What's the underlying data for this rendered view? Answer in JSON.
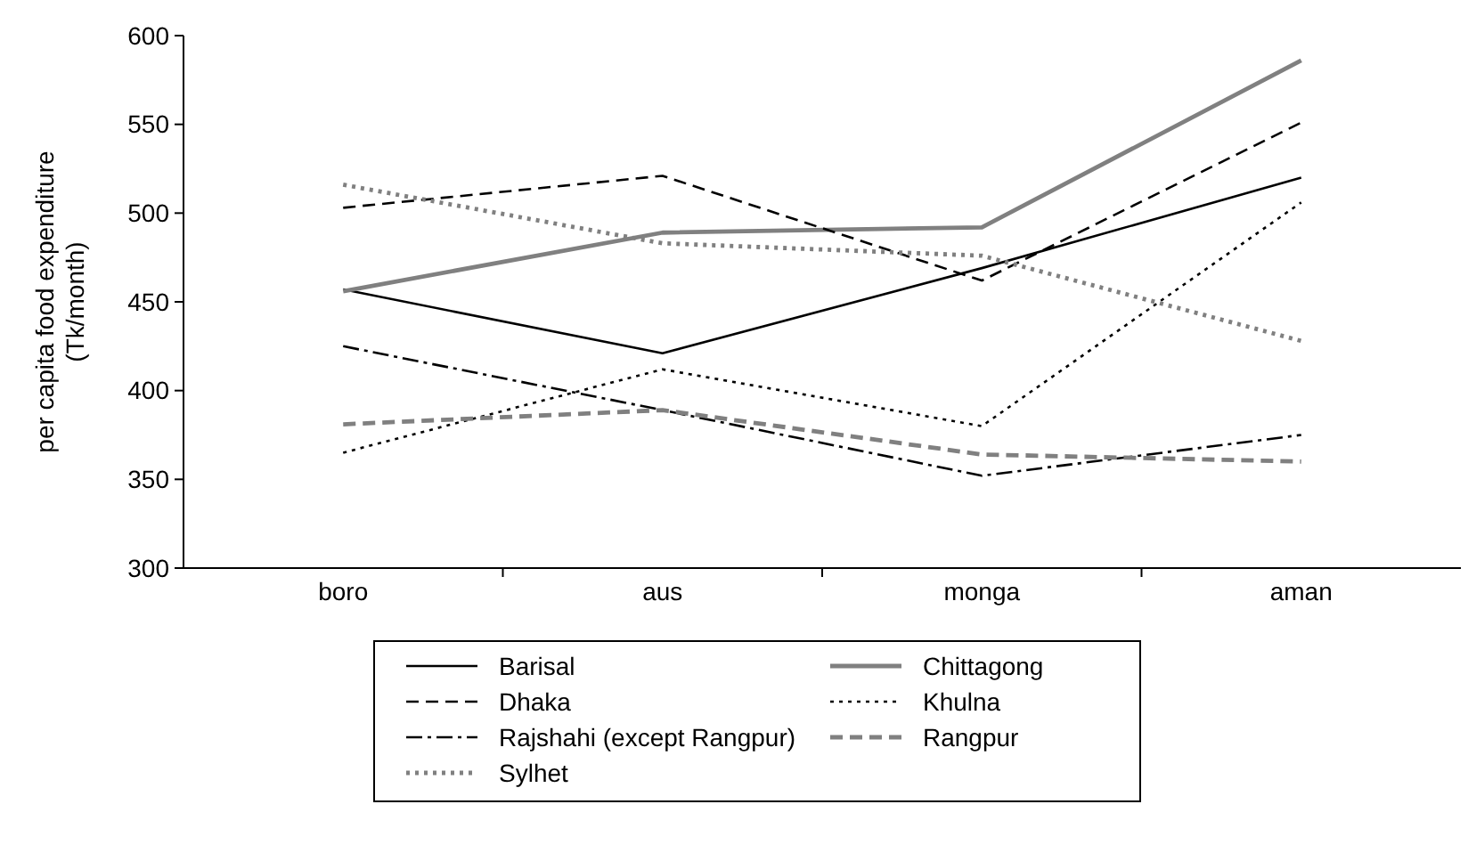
{
  "chart_data": {
    "type": "line",
    "ylabel": "per capita food expenditure\n(Tk/month)",
    "categories": [
      "boro",
      "aus",
      "monga",
      "aman"
    ],
    "ylim": [
      300,
      600
    ],
    "yticks": [
      300,
      350,
      400,
      450,
      500,
      550,
      600
    ],
    "grid": false,
    "legend": "bottom",
    "marker": "none",
    "series": [
      {
        "name": "Barisal",
        "color": "#000000",
        "line_style": "solid",
        "values": [
          457,
          421,
          469,
          520
        ]
      },
      {
        "name": "Chittagong",
        "color": "#808080",
        "line_style": "solid",
        "values": [
          456,
          489,
          492,
          586
        ]
      },
      {
        "name": "Dhaka",
        "color": "#000000",
        "line_style": "dashed",
        "values": [
          503,
          521,
          462,
          551
        ]
      },
      {
        "name": "Khulna",
        "color": "#000000",
        "line_style": "dotted",
        "values": [
          365,
          412,
          380,
          506
        ]
      },
      {
        "name": "Rajshahi (except Rangpur)",
        "color": "#000000",
        "line_style": "dashdot",
        "values": [
          425,
          389,
          352,
          375
        ]
      },
      {
        "name": "Rangpur",
        "color": "#808080",
        "line_style": "dashed",
        "values": [
          381,
          389,
          364,
          360
        ]
      },
      {
        "name": "Sylhet",
        "color": "#808080",
        "line_style": "dotted",
        "values": [
          516,
          483,
          476,
          428
        ]
      }
    ]
  }
}
